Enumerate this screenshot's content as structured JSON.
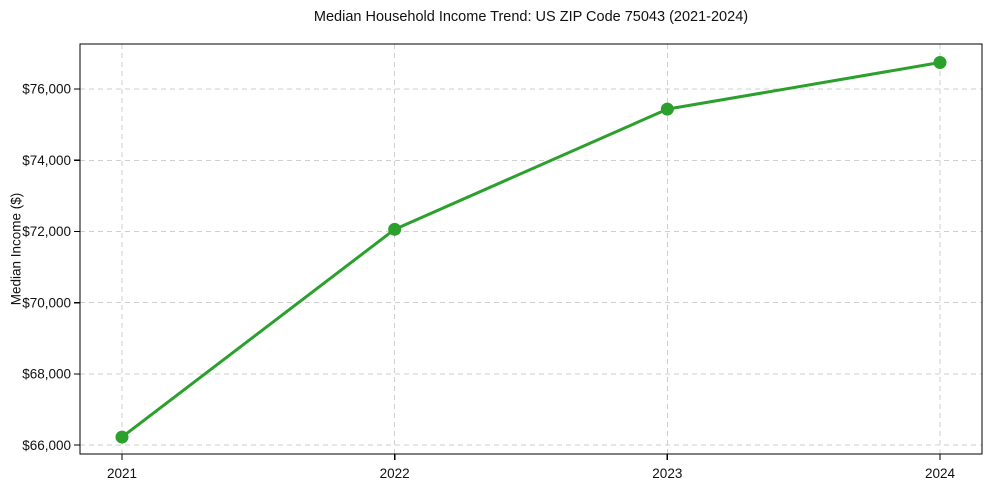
{
  "chart_data": {
    "type": "line",
    "title": "Median Household Income Trend: US ZIP Code 75043 (2021-2024)",
    "xlabel": "",
    "ylabel": "Median Income ($)",
    "x": [
      2021,
      2022,
      2023,
      2024
    ],
    "x_tick_labels": [
      "2021",
      "2022",
      "2023",
      "2024"
    ],
    "series": [
      {
        "name": "Median Household Income",
        "values": [
          66225,
          72060,
          75435,
          76745
        ]
      }
    ],
    "y_ticks": [
      66000,
      68000,
      70000,
      72000,
      74000,
      76000
    ],
    "y_tick_labels": [
      "$66,000",
      "$68,000",
      "$70,000",
      "$72,000",
      "$74,000",
      "$76,000"
    ],
    "ylim": [
      65750,
      77265
    ],
    "grid": true,
    "grid_style": "dashed",
    "legend": false,
    "line_color": "#2ca02c",
    "marker_color": "#2ca02c",
    "grid_color": "#cfcfcf",
    "spine_color": "#000000",
    "text_color": "#111111",
    "background": "#ffffff"
  }
}
